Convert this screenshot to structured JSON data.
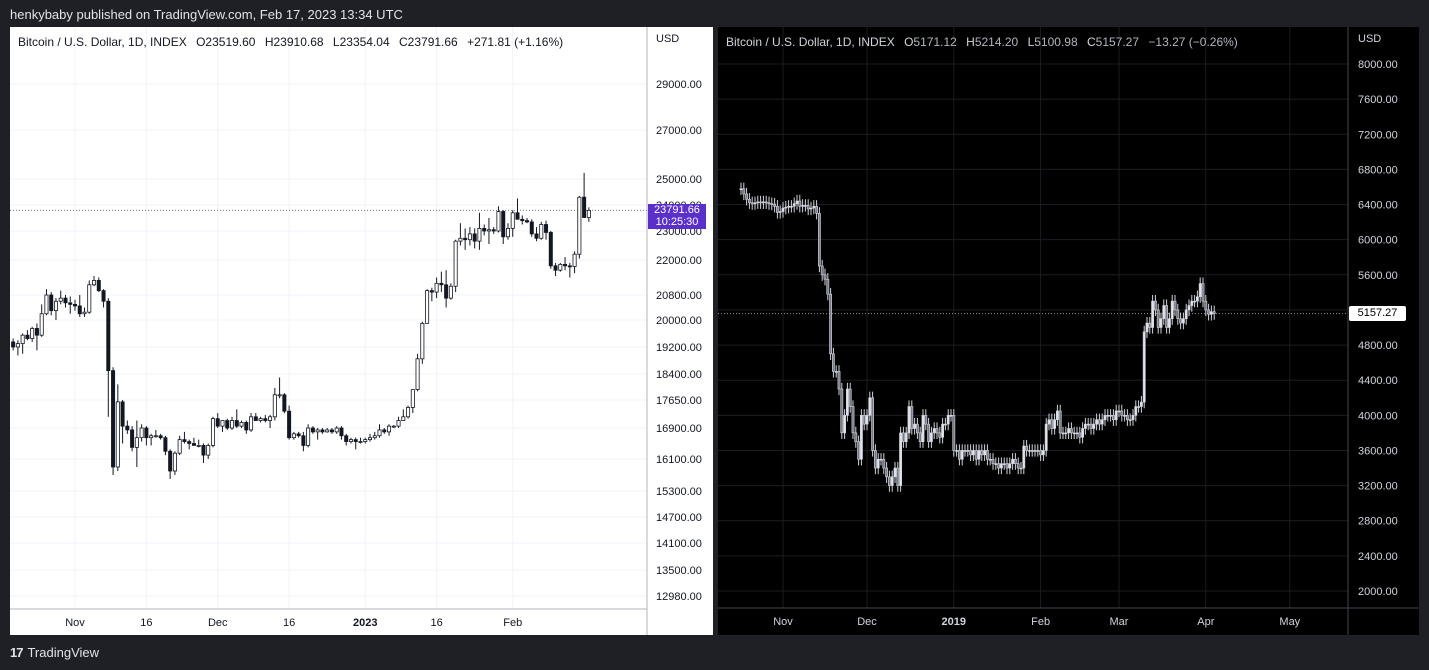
{
  "header": {
    "published_text": "henkybaby published on TradingView.com, Feb 17, 2023 13:34 UTC"
  },
  "footer": {
    "logo_glyph": "17",
    "brand": "TradingView"
  },
  "colors": {
    "accent": "#5b2fc9",
    "left_bg": "#ffffff",
    "right_bg": "#000000"
  },
  "chart_data": [
    {
      "type": "candlestick",
      "theme": "light",
      "legend": {
        "symbol": "Bitcoin / U.S. Dollar, 1D, INDEX",
        "open_label": "O",
        "open": "23519.60",
        "high_label": "H",
        "high": "23910.68",
        "low_label": "L",
        "low": "23354.04",
        "close_label": "C",
        "close": "23791.66",
        "change": "+271.81 (+1.16%)"
      },
      "currency": "USD",
      "last_price": "23791.66",
      "countdown": "10:25:30",
      "y_ticks": [
        "29000.00",
        "27000.00",
        "25000.00",
        "24000.00",
        "23000.00",
        "22000.00",
        "20800.00",
        "20000.00",
        "19200.00",
        "18400.00",
        "17650.00",
        "16900.00",
        "16100.00",
        "15300.00",
        "14700.00",
        "14100.00",
        "13500.00",
        "12980.00"
      ],
      "x_ticks": [
        "Nov",
        "16",
        "Dec",
        "16",
        "2023",
        "16",
        "Feb"
      ],
      "x_bold": [
        "2023"
      ],
      "series": [
        [
          "2022-10-13",
          19150,
          19250,
          18950,
          19180
        ],
        [
          "2022-10-14",
          19180,
          19950,
          19100,
          19050
        ],
        [
          "2022-10-15",
          19050,
          19200,
          18800,
          19140
        ],
        [
          "2022-10-16",
          19140,
          19300,
          19050,
          19250
        ],
        [
          "2022-10-17",
          19250,
          19800,
          19200,
          19600
        ],
        [
          "2022-10-18",
          19600,
          19700,
          19200,
          19350
        ],
        [
          "2022-10-19",
          19350,
          19450,
          19100,
          19200
        ],
        [
          "2022-10-20",
          19200,
          19400,
          18950,
          19300
        ],
        [
          "2022-10-21",
          19300,
          19600,
          19000,
          19550
        ],
        [
          "2022-10-22",
          19550,
          19700,
          19400,
          19450
        ],
        [
          "2022-10-23",
          19450,
          19800,
          19350,
          19750
        ],
        [
          "2022-10-24",
          19750,
          19900,
          19100,
          19550
        ],
        [
          "2022-10-25",
          19550,
          20500,
          19500,
          20200
        ],
        [
          "2022-10-26",
          20200,
          21000,
          20150,
          20800
        ],
        [
          "2022-10-27",
          20800,
          20900,
          20150,
          20300
        ],
        [
          "2022-10-28",
          20300,
          20700,
          20000,
          20600
        ],
        [
          "2022-10-29",
          20600,
          20950,
          20500,
          20700
        ],
        [
          "2022-10-30",
          20700,
          20800,
          20400,
          20550
        ],
        [
          "2022-10-31",
          20550,
          20750,
          20200,
          20500
        ],
        [
          "2022-11-01",
          20500,
          20650,
          20300,
          20450
        ],
        [
          "2022-11-02",
          20450,
          20800,
          20100,
          20200
        ],
        [
          "2022-11-03",
          20200,
          20400,
          20100,
          20250
        ],
        [
          "2022-11-04",
          20250,
          21300,
          20200,
          21150
        ],
        [
          "2022-11-05",
          21150,
          21450,
          21100,
          21300
        ],
        [
          "2022-11-06",
          21300,
          21400,
          20900,
          20950
        ],
        [
          "2022-11-07",
          20950,
          21000,
          20400,
          20600
        ],
        [
          "2022-11-08",
          20600,
          20700,
          17200,
          18500
        ],
        [
          "2022-11-09",
          18500,
          18600,
          15700,
          15900
        ],
        [
          "2022-11-10",
          15900,
          18100,
          15800,
          17600
        ],
        [
          "2022-11-11",
          17600,
          17650,
          16500,
          16950
        ],
        [
          "2022-11-12",
          16950,
          17100,
          16750,
          16850
        ],
        [
          "2022-11-13",
          16850,
          16950,
          16300,
          16400
        ],
        [
          "2022-11-14",
          16400,
          17100,
          15900,
          16650
        ],
        [
          "2022-11-15",
          16650,
          17000,
          16550,
          16900
        ],
        [
          "2022-11-16",
          16900,
          16950,
          16450,
          16650
        ],
        [
          "2022-11-17",
          16650,
          16750,
          16450,
          16700
        ],
        [
          "2022-11-18",
          16700,
          16850,
          16650,
          16700
        ],
        [
          "2022-11-19",
          16700,
          16750,
          16600,
          16650
        ],
        [
          "2022-11-20",
          16650,
          16700,
          16200,
          16300
        ],
        [
          "2022-11-21",
          16300,
          16350,
          15600,
          15800
        ],
        [
          "2022-11-22",
          15800,
          16300,
          15700,
          16250
        ],
        [
          "2022-11-23",
          16250,
          16700,
          16200,
          16600
        ],
        [
          "2022-11-24",
          16600,
          16800,
          16500,
          16550
        ],
        [
          "2022-11-25",
          16550,
          16600,
          16350,
          16500
        ],
        [
          "2022-11-26",
          16500,
          16650,
          16450,
          16450
        ],
        [
          "2022-11-27",
          16450,
          16600,
          16400,
          16450
        ],
        [
          "2022-11-28",
          16450,
          16500,
          16000,
          16200
        ],
        [
          "2022-11-29",
          16200,
          16500,
          16100,
          16450
        ],
        [
          "2022-11-30",
          16450,
          17200,
          16400,
          17150
        ],
        [
          "2022-12-01",
          17150,
          17300,
          16900,
          16950
        ],
        [
          "2022-12-02",
          16950,
          17100,
          16800,
          17100
        ],
        [
          "2022-12-03",
          17100,
          17150,
          16850,
          16900
        ],
        [
          "2022-12-04",
          16900,
          17200,
          16850,
          17100
        ],
        [
          "2022-12-05",
          17100,
          17400,
          16900,
          16950
        ],
        [
          "2022-12-06",
          16950,
          17100,
          16900,
          17050
        ],
        [
          "2022-12-07",
          17050,
          17100,
          16750,
          16850
        ],
        [
          "2022-12-08",
          16850,
          17300,
          16800,
          17200
        ],
        [
          "2022-12-09",
          17200,
          17300,
          17100,
          17100
        ],
        [
          "2022-12-10",
          17100,
          17200,
          17050,
          17150
        ],
        [
          "2022-12-11",
          17150,
          17250,
          17050,
          17100
        ],
        [
          "2022-12-12",
          17100,
          17250,
          16900,
          17200
        ],
        [
          "2022-12-13",
          17200,
          18000,
          17100,
          17800
        ],
        [
          "2022-12-14",
          17800,
          18300,
          17700,
          17800
        ],
        [
          "2022-12-15",
          17800,
          17850,
          17300,
          17350
        ],
        [
          "2022-12-16",
          17350,
          17500,
          16600,
          16650
        ],
        [
          "2022-12-17",
          16650,
          16800,
          16600,
          16750
        ],
        [
          "2022-12-18",
          16750,
          16800,
          16650,
          16700
        ],
        [
          "2022-12-19",
          16700,
          16800,
          16300,
          16450
        ],
        [
          "2022-12-20",
          16450,
          17000,
          16400,
          16900
        ],
        [
          "2022-12-21",
          16900,
          16950,
          16750,
          16800
        ],
        [
          "2022-12-22",
          16800,
          16900,
          16600,
          16850
        ],
        [
          "2022-12-23",
          16850,
          16900,
          16750,
          16800
        ],
        [
          "2022-12-24",
          16800,
          16900,
          16780,
          16850
        ],
        [
          "2022-12-25",
          16850,
          16900,
          16750,
          16800
        ],
        [
          "2022-12-26",
          16800,
          16950,
          16750,
          16900
        ],
        [
          "2022-12-27",
          16900,
          16950,
          16600,
          16700
        ],
        [
          "2022-12-28",
          16700,
          16750,
          16450,
          16550
        ],
        [
          "2022-12-29",
          16550,
          16650,
          16500,
          16600
        ],
        [
          "2022-12-30",
          16600,
          16650,
          16350,
          16550
        ],
        [
          "2022-12-31",
          16550,
          16650,
          16500,
          16550
        ],
        [
          "2023-01-01",
          16550,
          16650,
          16500,
          16600
        ],
        [
          "2023-01-02",
          16600,
          16750,
          16550,
          16650
        ],
        [
          "2023-01-03",
          16650,
          16800,
          16600,
          16700
        ],
        [
          "2023-01-04",
          16700,
          17000,
          16650,
          16850
        ],
        [
          "2023-01-05",
          16850,
          16900,
          16750,
          16800
        ],
        [
          "2023-01-06",
          16800,
          17000,
          16700,
          16950
        ],
        [
          "2023-01-07",
          16950,
          16980,
          16900,
          16950
        ],
        [
          "2023-01-08",
          16950,
          17200,
          16900,
          17100
        ],
        [
          "2023-01-09",
          17100,
          17400,
          17100,
          17200
        ],
        [
          "2023-01-10",
          17200,
          17500,
          17150,
          17450
        ],
        [
          "2023-01-11",
          17450,
          17950,
          17300,
          17950
        ],
        [
          "2023-01-12",
          17950,
          19000,
          17900,
          18850
        ],
        [
          "2023-01-13",
          18850,
          19950,
          18700,
          19900
        ],
        [
          "2023-01-14",
          19900,
          21000,
          19900,
          20950
        ],
        [
          "2023-01-15",
          20950,
          21050,
          20600,
          20900
        ],
        [
          "2023-01-16",
          20900,
          21400,
          20700,
          21200
        ],
        [
          "2023-01-17",
          21200,
          21600,
          20900,
          21150
        ],
        [
          "2023-01-18",
          21150,
          21650,
          20400,
          20700
        ],
        [
          "2023-01-19",
          20700,
          21200,
          20650,
          21100
        ],
        [
          "2023-01-20",
          21100,
          22700,
          20900,
          22650
        ],
        [
          "2023-01-21",
          22650,
          23300,
          22500,
          22750
        ],
        [
          "2023-01-22",
          22750,
          23100,
          22350,
          22700
        ],
        [
          "2023-01-23",
          22700,
          23150,
          22500,
          22900
        ],
        [
          "2023-01-24",
          22900,
          23100,
          22400,
          22650
        ],
        [
          "2023-01-25",
          22650,
          23700,
          22350,
          23100
        ],
        [
          "2023-01-26",
          23100,
          23250,
          22850,
          23000
        ],
        [
          "2023-01-27",
          23000,
          23500,
          22550,
          23050
        ],
        [
          "2023-01-28",
          23050,
          23150,
          22900,
          23000
        ],
        [
          "2023-01-29",
          23000,
          23950,
          22950,
          23750
        ],
        [
          "2023-01-30",
          23750,
          23800,
          22550,
          22800
        ],
        [
          "2023-01-31",
          22800,
          23300,
          22700,
          23100
        ],
        [
          "2023-02-01",
          23100,
          23800,
          22800,
          23700
        ],
        [
          "2023-02-02",
          23700,
          24250,
          23450,
          23450
        ],
        [
          "2023-02-03",
          23450,
          23600,
          23250,
          23400
        ],
        [
          "2023-02-04",
          23400,
          23500,
          23300,
          23350
        ],
        [
          "2023-02-05",
          23350,
          23450,
          22800,
          22900
        ],
        [
          "2023-02-06",
          22900,
          23150,
          22650,
          22750
        ],
        [
          "2023-02-07",
          22750,
          23350,
          22700,
          23250
        ],
        [
          "2023-02-08",
          23250,
          23400,
          22700,
          22950
        ],
        [
          "2023-02-09",
          22950,
          23000,
          21700,
          21800
        ],
        [
          "2023-02-10",
          21800,
          21900,
          21450,
          21650
        ],
        [
          "2023-02-11",
          21650,
          21900,
          21600,
          21850
        ],
        [
          "2023-02-12",
          21850,
          22100,
          21650,
          21800
        ],
        [
          "2023-02-13",
          21800,
          21900,
          21400,
          21780
        ],
        [
          "2023-02-14",
          21780,
          22300,
          21550,
          22200
        ],
        [
          "2023-02-15",
          22200,
          24350,
          22050,
          24300
        ],
        [
          "2023-02-16",
          24300,
          25250,
          23500,
          23520
        ],
        [
          "2023-02-17",
          23520,
          23910,
          23354,
          23792
        ]
      ]
    },
    {
      "type": "candlestick",
      "theme": "dark",
      "legend": {
        "symbol": "Bitcoin / U.S. Dollar, 1D, INDEX",
        "open_label": "O",
        "open": "5171.12",
        "high_label": "H",
        "high": "5214.20",
        "low_label": "L",
        "low": "5100.98",
        "close_label": "C",
        "close": "5157.27",
        "change": "−13.27 (−0.26%)"
      },
      "currency": "USD",
      "last_price": "5157.27",
      "y_ticks": [
        "8000.00",
        "7600.00",
        "7200.00",
        "6800.00",
        "6400.00",
        "6000.00",
        "5600.00",
        "5200.00",
        "4800.00",
        "4400.00",
        "4000.00",
        "3600.00",
        "3200.00",
        "2800.00",
        "2400.00",
        "2000.00"
      ],
      "x_ticks": [
        "Nov",
        "Dec",
        "2019",
        "Feb",
        "Mar",
        "Apr",
        "May"
      ],
      "x_bold": [
        "2019"
      ],
      "series_start": "2018-10-17",
      "closes": [
        6580,
        6520,
        6460,
        6420,
        6410,
        6420,
        6430,
        6420,
        6430,
        6420,
        6410,
        6405,
        6380,
        6310,
        6320,
        6360,
        6370,
        6380,
        6380,
        6410,
        6440,
        6380,
        6390,
        6390,
        6350,
        6360,
        6380,
        6300,
        5700,
        5600,
        5550,
        5380,
        4700,
        4500,
        4500,
        4300,
        3800,
        4000,
        4300,
        4100,
        3800,
        3700,
        3500,
        4000,
        3900,
        4000,
        4200,
        3600,
        3400,
        3500,
        3500,
        3400,
        3300,
        3200,
        3300,
        3400,
        3200,
        3800,
        3700,
        3800,
        4100,
        3850,
        3900,
        3800,
        3700,
        4000,
        3900,
        3700,
        3800,
        3850,
        3800,
        3750,
        3900,
        3900,
        4000,
        4000,
        3600,
        3600,
        3500,
        3600,
        3600,
        3600,
        3550,
        3600,
        3500,
        3600,
        3550,
        3600,
        3500,
        3500,
        3450,
        3450,
        3400,
        3450,
        3450,
        3400,
        3450,
        3500,
        3450,
        3400,
        3400,
        3650,
        3600,
        3600,
        3600,
        3600,
        3600,
        3550,
        3600,
        3900,
        3950,
        3850,
        3950,
        4050,
        3800,
        3800,
        3800,
        3850,
        3800,
        3800,
        3800,
        3750,
        3850,
        3900,
        3900,
        3850,
        3900,
        3950,
        3900,
        3950,
        4000,
        4000,
        4000,
        3950,
        4050,
        4050,
        4000,
        4000,
        3950,
        3950,
        4000,
        4100,
        4100,
        4150,
        4950,
        5050,
        5000,
        5300,
        5200,
        5000,
        5100,
        5250,
        5000,
        5100,
        5300,
        5200,
        5100,
        5050,
        5100,
        5200,
        5250,
        5300,
        5300,
        5350,
        5500,
        5300,
        5200,
        5150,
        5180,
        5157
      ]
    }
  ]
}
